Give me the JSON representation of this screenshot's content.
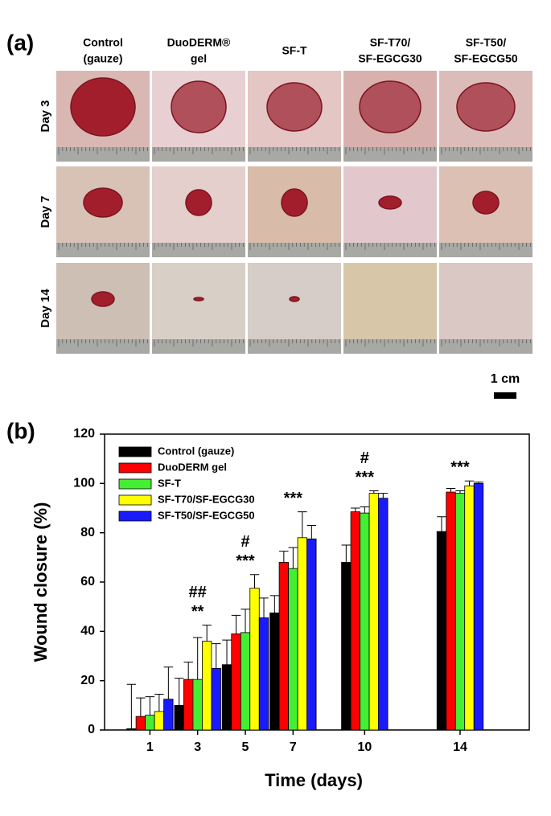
{
  "panel_a": {
    "label": "(a)",
    "columns": [
      [
        "Control",
        "(gauze)"
      ],
      [
        "DuoDERM®",
        "gel"
      ],
      [
        "SF-T"
      ],
      [
        "SF-T70/",
        "SF-EGCG30"
      ],
      [
        "SF-T50/",
        "SF-EGCG50"
      ]
    ],
    "rows": [
      "Day 3",
      "Day 7",
      "Day 14"
    ],
    "scale_bar": "1 cm"
  },
  "chart_data": {
    "type": "bar",
    "panel_label": "(b)",
    "x_label": "Time (days)",
    "y_label": "Wound closure (%)",
    "x": [
      1,
      3,
      5,
      7,
      10,
      14
    ],
    "xlim": [
      -0.9,
      16.9
    ],
    "xticks": [
      1,
      3,
      5,
      7,
      10,
      14
    ],
    "ylim": [
      0,
      120
    ],
    "yticks": [
      0,
      20,
      40,
      60,
      80,
      100,
      120
    ],
    "grid": false,
    "legend": "upper left",
    "series": [
      {
        "name": "Control (gauze)",
        "color": "#000000",
        "values": [
          0.5,
          10,
          26.5,
          47.5,
          68,
          80.5
        ],
        "errors": [
          18,
          11,
          10,
          7,
          7,
          6
        ]
      },
      {
        "name": "DuoDERM gel",
        "color": "#ff0000",
        "values": [
          5.5,
          20.5,
          39,
          68,
          88.5,
          96.5
        ],
        "errors": [
          7.5,
          7,
          7.5,
          4.5,
          1.5,
          1.5
        ]
      },
      {
        "name": "SF-T",
        "color": "#44ee33",
        "values": [
          6,
          20.5,
          39.5,
          65.5,
          88,
          96
        ],
        "errors": [
          7.5,
          17,
          9.5,
          8.5,
          2.5,
          1
        ]
      },
      {
        "name": "SF-T70/SF-EGCG30",
        "color": "#ffff00",
        "values": [
          7.5,
          36,
          57.5,
          78,
          96,
          99
        ],
        "errors": [
          7,
          6.5,
          5.5,
          10.5,
          1,
          2
        ]
      },
      {
        "name": "SF-T50/SF-EGCG50",
        "color": "#1a1aff",
        "values": [
          12.5,
          25,
          45.5,
          77.5,
          94,
          100
        ],
        "errors": [
          13,
          10,
          8,
          5.5,
          2,
          0.5
        ]
      }
    ],
    "annotations": [
      {
        "x": 3,
        "lines": [
          "##",
          "**"
        ]
      },
      {
        "x": 5,
        "lines": [
          "#",
          "***"
        ]
      },
      {
        "x": 7,
        "lines": [
          "***"
        ]
      },
      {
        "x": 10,
        "lines": [
          "#",
          "***"
        ]
      },
      {
        "x": 14,
        "lines": [
          "***"
        ]
      }
    ]
  }
}
